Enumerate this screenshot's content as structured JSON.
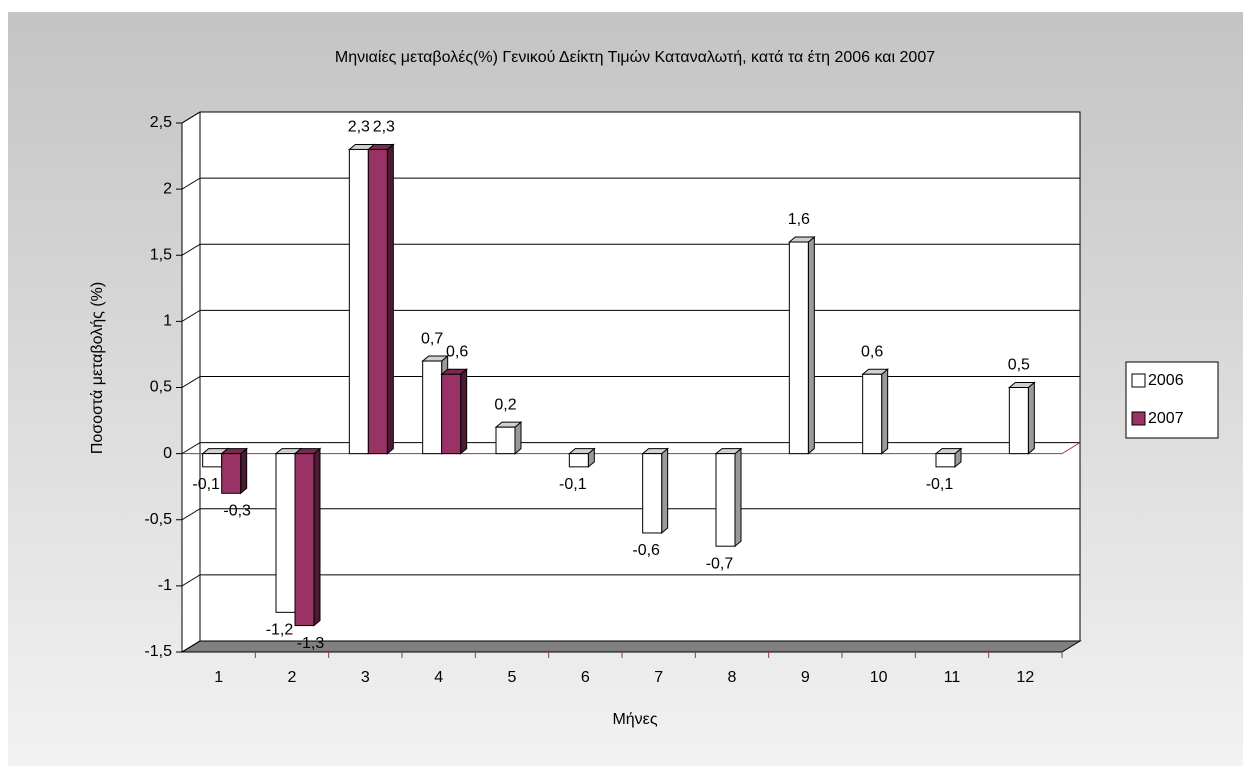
{
  "chart_data": {
    "type": "bar3d",
    "title": "Μηνιαίες μεταβολές(%) Γενικού Δείκτη Τιμών Καταναλωτή, κατά τα έτη 2006 και 2007",
    "x_label": "Μήνες",
    "y_label": "Ποσοστά μεταβολής (%)",
    "categories": [
      "1",
      "2",
      "3",
      "4",
      "5",
      "6",
      "7",
      "8",
      "9",
      "10",
      "11",
      "12"
    ],
    "series": [
      {
        "name": "2006",
        "color": "#ffffff",
        "side": "#9a9a9a",
        "top": "#d0d0d0",
        "values": [
          -0.1,
          -1.2,
          2.3,
          0.7,
          0.2,
          -0.1,
          -0.6,
          -0.7,
          1.6,
          0.6,
          -0.1,
          0.5
        ],
        "value_labels": [
          "-0,1",
          "-1,2",
          "2,3",
          "0,7",
          "0,2",
          "-0,1",
          "-0,6",
          "-0,7",
          "1,6",
          "0,6",
          "-0,1",
          "0,5"
        ]
      },
      {
        "name": "2007",
        "color": "#993366",
        "side": "#4d1a33",
        "top": "#7a2952",
        "values": [
          -0.3,
          -1.3,
          2.3,
          0.6,
          null,
          null,
          null,
          null,
          null,
          null,
          null,
          null
        ],
        "value_labels": [
          "-0,3",
          "-1,3",
          "2,3",
          "0,6",
          null,
          null,
          null,
          null,
          null,
          null,
          null,
          null
        ]
      }
    ],
    "ylim": [
      -1.5,
      2.5
    ],
    "yticks": [
      {
        "value": -1.5,
        "label": "-1,5"
      },
      -1,
      {
        "value": -0.5,
        "label": "-0,5"
      },
      0,
      {
        "value": 0.5,
        "label": "0,5"
      },
      1,
      {
        "value": 1.5,
        "label": "1,5"
      },
      2,
      {
        "value": 2.5,
        "label": "2,5"
      }
    ],
    "grid": true,
    "legend": "right"
  }
}
